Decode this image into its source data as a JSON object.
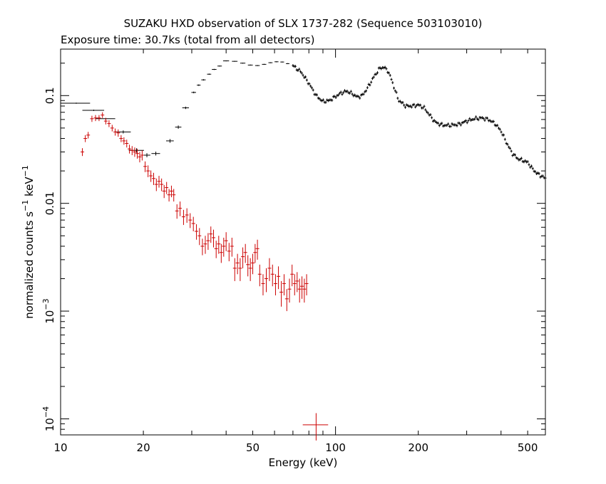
{
  "chart_data": {
    "type": "scatter",
    "title": "SUZAKU HXD observation of SLX 1737-282 (Sequence 503103010)",
    "subtitle": "Exposure time: 30.7ks (total from all detectors)",
    "xlabel": "Energy (keV)",
    "ylabel": {
      "main": "normalized counts s",
      "sup1": "−1",
      "mid": " keV",
      "sup2": "−1"
    },
    "xscale": "log",
    "yscale": "log",
    "xlim": [
      10,
      580
    ],
    "ylim": [
      7.1e-05,
      0.27
    ],
    "x_ticks": [
      {
        "value": 10,
        "label": "10"
      },
      {
        "value": 20,
        "label": "20"
      },
      {
        "value": 50,
        "label": "50"
      },
      {
        "value": 100,
        "label": "100"
      },
      {
        "value": 200,
        "label": "200"
      },
      {
        "value": 500,
        "label": "500"
      }
    ],
    "y_ticks": [
      {
        "value": 0.1,
        "label": "0.1",
        "base": "",
        "exp": ""
      },
      {
        "value": 0.01,
        "label": "0.01",
        "base": "",
        "exp": ""
      },
      {
        "value": 0.001,
        "label": "",
        "base": "10",
        "exp": "−3"
      },
      {
        "value": 0.0001,
        "label": "",
        "base": "10",
        "exp": "−4"
      }
    ],
    "colors": {
      "gso": "#000000",
      "pin": "#cc0000"
    },
    "series": [
      {
        "color": "#000000",
        "style": "binned",
        "points": [
          [
            11.4,
            0.085,
            1.4,
            0.001
          ],
          [
            13.2,
            0.073,
            1.2,
            0.001
          ],
          [
            14.6,
            0.061,
            1.2,
            0.001
          ],
          [
            16.9,
            0.046,
            1.1,
            0.0015
          ],
          [
            18.9,
            0.031,
            1.2,
            0.0015
          ],
          [
            20.6,
            0.028,
            0.6,
            0.0012
          ],
          [
            22.2,
            0.029,
            0.8,
            0.0012
          ],
          [
            25.0,
            0.038,
            0.8,
            0.0015
          ],
          [
            26.8,
            0.051,
            0.7,
            0.0018
          ],
          [
            28.5,
            0.077,
            0.8,
            0.002
          ],
          [
            30.5,
            0.107,
            0.6,
            0.002
          ],
          [
            31.8,
            0.125,
            0.5,
            0.002
          ],
          [
            33.1,
            0.14,
            0.6,
            0.002
          ],
          [
            34.7,
            0.158,
            0.6,
            0.002
          ],
          [
            36.2,
            0.175,
            0.7,
            0.002
          ],
          [
            37.9,
            0.188,
            0.7,
            0.002
          ],
          [
            40,
            0.21,
            1.0,
            0.002
          ],
          [
            43,
            0.208,
            1.0,
            0.002
          ],
          [
            46,
            0.2,
            1.0,
            0.002
          ],
          [
            49,
            0.192,
            1.0,
            0.002
          ],
          [
            52,
            0.19,
            1.0,
            0.002
          ],
          [
            55,
            0.195,
            1.0,
            0.002
          ],
          [
            58,
            0.202,
            1.0,
            0.002
          ],
          [
            61,
            0.206,
            1.0,
            0.002
          ],
          [
            64,
            0.205,
            1.0,
            0.002
          ],
          [
            67,
            0.198,
            1.0,
            0.002
          ]
        ],
        "curve": [
          [
            70,
            0.19
          ],
          [
            75,
            0.165
          ],
          [
            80,
            0.13
          ],
          [
            85,
            0.1
          ],
          [
            90,
            0.088
          ],
          [
            95,
            0.09
          ],
          [
            100,
            0.098
          ],
          [
            105,
            0.106
          ],
          [
            110,
            0.11
          ],
          [
            115,
            0.104
          ],
          [
            120,
            0.097
          ],
          [
            125,
            0.1
          ],
          [
            130,
            0.115
          ],
          [
            138,
            0.15
          ],
          [
            145,
            0.18
          ],
          [
            150,
            0.183
          ],
          [
            155,
            0.17
          ],
          [
            160,
            0.14
          ],
          [
            165,
            0.11
          ],
          [
            170,
            0.09
          ],
          [
            180,
            0.08
          ],
          [
            190,
            0.08
          ],
          [
            200,
            0.082
          ],
          [
            210,
            0.077
          ],
          [
            220,
            0.066
          ],
          [
            230,
            0.057
          ],
          [
            240,
            0.054
          ],
          [
            250,
            0.053
          ],
          [
            260,
            0.053
          ],
          [
            280,
            0.054
          ],
          [
            300,
            0.058
          ],
          [
            320,
            0.061
          ],
          [
            340,
            0.062
          ],
          [
            360,
            0.06
          ],
          [
            380,
            0.055
          ],
          [
            400,
            0.047
          ],
          [
            420,
            0.036
          ],
          [
            440,
            0.029
          ],
          [
            460,
            0.026
          ],
          [
            480,
            0.025
          ],
          [
            500,
            0.024
          ],
          [
            520,
            0.021
          ],
          [
            540,
            0.019
          ],
          [
            560,
            0.018
          ],
          [
            580,
            0.017
          ]
        ]
      },
      {
        "color": "#cc0000",
        "style": "errorbars",
        "points": [
          [
            12.0,
            0.03,
            0.0025
          ],
          [
            12.3,
            0.04,
            0.003
          ],
          [
            12.6,
            0.043,
            0.003
          ],
          [
            13.0,
            0.061,
            0.004
          ],
          [
            13.4,
            0.062,
            0.004
          ],
          [
            13.8,
            0.062,
            0.004
          ],
          [
            14.2,
            0.066,
            0.004
          ],
          [
            14.6,
            0.058,
            0.004
          ],
          [
            15.0,
            0.055,
            0.004
          ],
          [
            15.4,
            0.05,
            0.0035
          ],
          [
            15.8,
            0.046,
            0.0035
          ],
          [
            16.2,
            0.045,
            0.0035
          ],
          [
            16.6,
            0.04,
            0.003
          ],
          [
            17.0,
            0.038,
            0.003
          ],
          [
            17.4,
            0.036,
            0.003
          ],
          [
            17.8,
            0.032,
            0.003
          ],
          [
            18.2,
            0.031,
            0.003
          ],
          [
            18.6,
            0.03,
            0.003
          ],
          [
            19.0,
            0.029,
            0.003
          ],
          [
            19.4,
            0.027,
            0.003
          ],
          [
            19.8,
            0.028,
            0.003
          ],
          [
            20.3,
            0.022,
            0.0025
          ],
          [
            20.8,
            0.02,
            0.0025
          ],
          [
            21.3,
            0.018,
            0.0022
          ],
          [
            21.8,
            0.017,
            0.0022
          ],
          [
            22.3,
            0.015,
            0.002
          ],
          [
            22.8,
            0.016,
            0.002
          ],
          [
            23.3,
            0.015,
            0.002
          ],
          [
            23.8,
            0.013,
            0.0018
          ],
          [
            24.3,
            0.014,
            0.0018
          ],
          [
            24.8,
            0.012,
            0.0016
          ],
          [
            25.3,
            0.013,
            0.0016
          ],
          [
            25.8,
            0.012,
            0.0016
          ],
          [
            26.5,
            0.0085,
            0.0013
          ],
          [
            27.2,
            0.009,
            0.0014
          ],
          [
            28.0,
            0.0075,
            0.0012
          ],
          [
            28.8,
            0.0078,
            0.0012
          ],
          [
            29.6,
            0.007,
            0.0011
          ],
          [
            30.4,
            0.0065,
            0.001
          ],
          [
            31.2,
            0.0055,
            0.0009
          ],
          [
            32.0,
            0.005,
            0.0009
          ],
          [
            32.8,
            0.004,
            0.0007
          ],
          [
            33.6,
            0.0042,
            0.0008
          ],
          [
            34.4,
            0.0045,
            0.0008
          ],
          [
            35.2,
            0.0052,
            0.0009
          ],
          [
            36.0,
            0.0048,
            0.0009
          ],
          [
            36.8,
            0.0038,
            0.0007
          ],
          [
            37.6,
            0.0042,
            0.0008
          ],
          [
            38.4,
            0.0035,
            0.0007
          ],
          [
            39.2,
            0.004,
            0.0008
          ],
          [
            40.0,
            0.0045,
            0.0009
          ],
          [
            41.0,
            0.0036,
            0.0007
          ],
          [
            42.0,
            0.004,
            0.0008
          ],
          [
            43.0,
            0.0025,
            0.0006
          ],
          [
            44.0,
            0.0028,
            0.0006
          ],
          [
            45.0,
            0.0025,
            0.0006
          ],
          [
            46.0,
            0.0032,
            0.0007
          ],
          [
            47.0,
            0.0035,
            0.0007
          ],
          [
            48.0,
            0.0027,
            0.0006
          ],
          [
            49.0,
            0.0025,
            0.0006
          ],
          [
            50.0,
            0.0028,
            0.0006
          ],
          [
            51.0,
            0.0035,
            0.0007
          ],
          [
            52.0,
            0.0038,
            0.0008
          ],
          [
            53.0,
            0.0022,
            0.0005
          ],
          [
            54.5,
            0.0018,
            0.0004
          ],
          [
            56.0,
            0.002,
            0.0005
          ],
          [
            57.5,
            0.0025,
            0.0006
          ],
          [
            59.0,
            0.0022,
            0.0005
          ],
          [
            60.5,
            0.0018,
            0.0004
          ],
          [
            62.0,
            0.0021,
            0.0005
          ],
          [
            63.5,
            0.0015,
            0.0004
          ],
          [
            65.0,
            0.0018,
            0.0004
          ],
          [
            66.5,
            0.0013,
            0.0003
          ],
          [
            68.0,
            0.0016,
            0.0004
          ],
          [
            69.5,
            0.0022,
            0.0005
          ],
          [
            71.0,
            0.0018,
            0.0004
          ],
          [
            72.5,
            0.0019,
            0.0004
          ],
          [
            74.0,
            0.0016,
            0.0004
          ],
          [
            75.5,
            0.0017,
            0.0004
          ],
          [
            77.0,
            0.0016,
            0.0004
          ],
          [
            78.5,
            0.0018,
            0.0004
          ]
        ],
        "outlier": [
          85,
          8.8e-05,
          9,
          2.5e-05
        ]
      }
    ]
  }
}
